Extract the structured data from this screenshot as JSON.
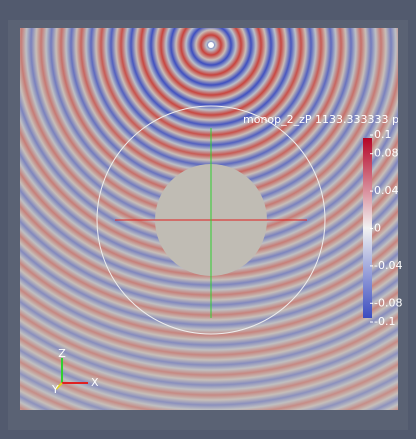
{
  "view_title": "monop_2_zP 1133.333333  p_T",
  "colorbar": {
    "range": [
      -0.1,
      0.1
    ],
    "ticks": [
      0.1,
      0.08,
      0.04,
      0,
      -0.04,
      -0.08,
      -0.1
    ]
  },
  "axes": {
    "z": "Z",
    "y": "Y",
    "x": "X"
  }
}
